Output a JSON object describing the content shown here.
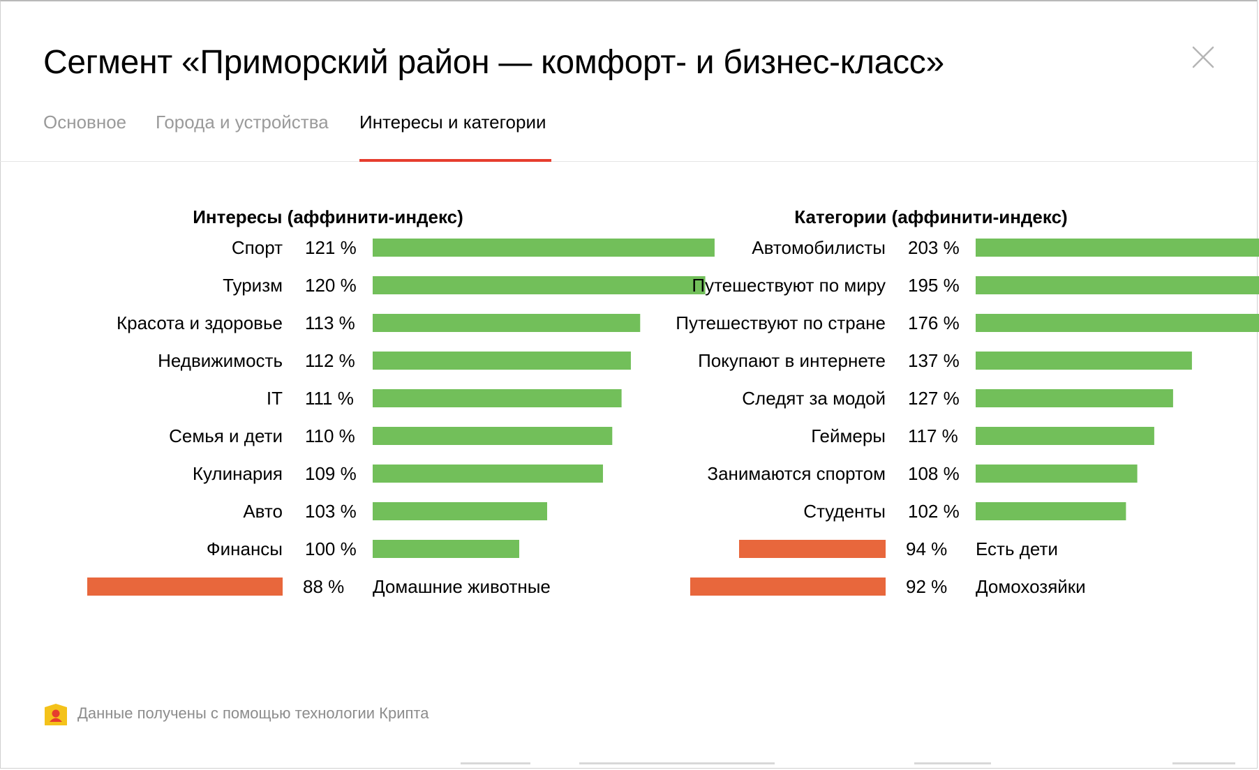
{
  "modal": {
    "title": "Сегмент «Приморский район — комфорт- и бизнес-класс»",
    "tabs": [
      "Основное",
      "Города и устройства",
      "Интересы и категории"
    ],
    "active_tab": 2
  },
  "footer": {
    "note": "Данные получены с помощью технологии Крипта"
  },
  "colors": {
    "positive": "#72bf5a",
    "negative": "#e8673c",
    "tab_accent": "#e63d2e",
    "kripta": "#f4c21a"
  },
  "chart_data": [
    {
      "type": "bar",
      "title": "Интересы (аффинити-индекс)",
      "orientation": "horizontal",
      "baseline": 100,
      "unit": "%",
      "categories": [
        "Спорт",
        "Туризм",
        "Красота и здоровье",
        "Недвижимость",
        "IT",
        "Семья и дети",
        "Кулинария",
        "Авто",
        "Финансы",
        "Домашние животные"
      ],
      "values": [
        121,
        120,
        113,
        112,
        111,
        110,
        109,
        103,
        100,
        88
      ],
      "value_labels": [
        "121 %",
        "120 %",
        "113 %",
        "112 %",
        "111 %",
        "110 %",
        "109 %",
        "103 %",
        "100 %",
        "88 %"
      ]
    },
    {
      "type": "bar",
      "title": "Категории (аффинити-индекс)",
      "orientation": "horizontal",
      "baseline": 100,
      "unit": "%",
      "categories": [
        "Автомобилисты",
        "Путешествуют по миру",
        "Путешествуют по стране",
        "Покупают в интернете",
        "Следят за модой",
        "Геймеры",
        "Занимаются спортом",
        "Студенты",
        "Есть дети",
        "Домохозяйки"
      ],
      "values": [
        203,
        195,
        176,
        137,
        127,
        117,
        108,
        102,
        94,
        92
      ],
      "value_labels": [
        "203 %",
        "195 %",
        "176 %",
        "137 %",
        "127 %",
        "117 %",
        "108 %",
        "102 %",
        "94 %",
        "92 %"
      ]
    }
  ]
}
